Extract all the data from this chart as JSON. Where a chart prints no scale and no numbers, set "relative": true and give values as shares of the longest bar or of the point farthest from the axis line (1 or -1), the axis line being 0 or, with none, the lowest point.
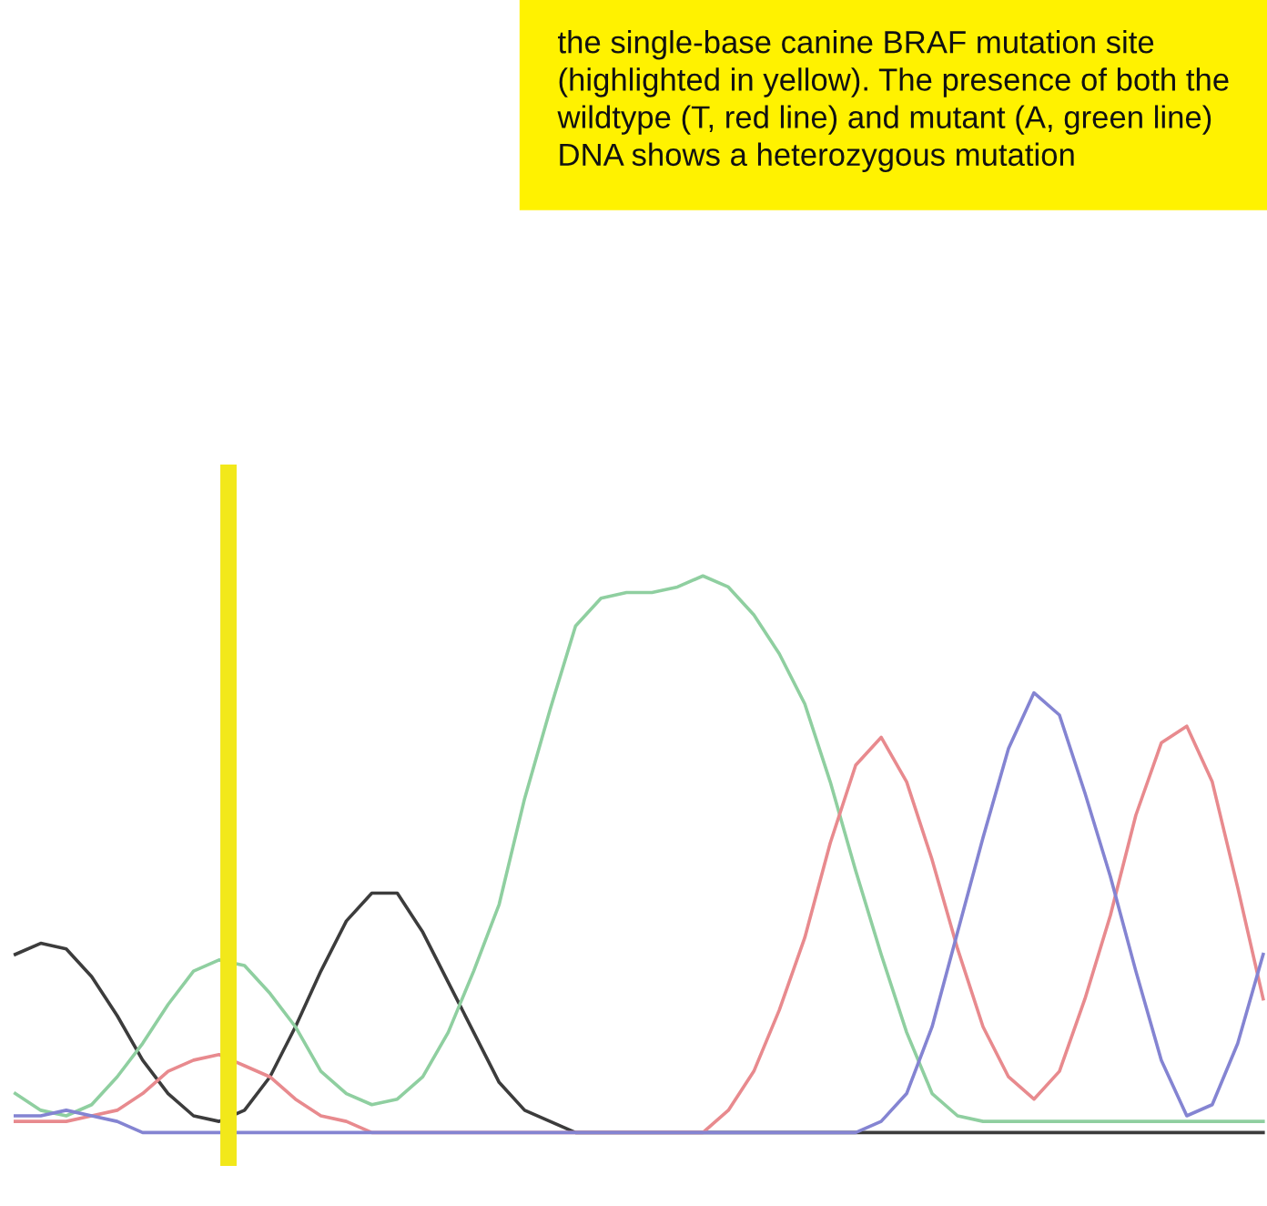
{
  "chart_data": {
    "type": "line",
    "relative": true,
    "annotations": [
      "the single-base canine BRAF mutation site (highlighted in yellow). The presence of both the wildtype (T, red line) and mutant (A, green line) DNA shows a heterozygous mutation"
    ],
    "categories": [
      null,
      null,
      null,
      null,
      null,
      null,
      null,
      null,
      null,
      null,
      null,
      null,
      null,
      null,
      null,
      null,
      null,
      null,
      null,
      null,
      null,
      null,
      null,
      null,
      null,
      null,
      null,
      null,
      null,
      null,
      null,
      null,
      null,
      null,
      null,
      null,
      null,
      null,
      null,
      null,
      null,
      null,
      null,
      null,
      null,
      null,
      null,
      null,
      null,
      null
    ],
    "series": [
      {
        "color": "#3c3c3c",
        "values": [
          0.32,
          0.34,
          0.33,
          0.28,
          0.21,
          0.13,
          0.07,
          0.03,
          0.02,
          0.04,
          0.1,
          0.19,
          0.29,
          0.38,
          0.43,
          0.43,
          0.36,
          0.27,
          0.18,
          0.09,
          0.04,
          0.02,
          0,
          0,
          0,
          0,
          0,
          0,
          0,
          0,
          0,
          0,
          0,
          0,
          0,
          0,
          0,
          0,
          0,
          0,
          0,
          0,
          0,
          0,
          0,
          0,
          0,
          0,
          0,
          0
        ]
      },
      {
        "color": "#8fcfa0",
        "values": [
          0.07,
          0.04,
          0.03,
          0.05,
          0.1,
          0.16,
          0.23,
          0.29,
          0.31,
          0.3,
          0.25,
          0.19,
          0.11,
          0.07,
          0.05,
          0.06,
          0.1,
          0.18,
          0.29,
          0.41,
          0.6,
          0.76,
          0.91,
          0.96,
          0.97,
          0.97,
          0.98,
          1,
          0.98,
          0.93,
          0.86,
          0.77,
          0.63,
          0.47,
          0.32,
          0.18,
          0.07,
          0.03,
          0.02,
          0.02,
          0.02,
          0.02,
          0.02,
          0.02,
          0.02,
          0.02,
          0.02,
          0.02,
          0.02,
          0.02
        ]
      },
      {
        "color": "#e88a8e",
        "values": [
          0.02,
          0.02,
          0.02,
          0.03,
          0.04,
          0.07,
          0.11,
          0.13,
          0.14,
          0.12,
          0.1,
          0.06,
          0.03,
          0.02,
          0,
          0,
          0,
          0,
          0,
          0,
          0,
          0,
          0,
          0,
          0,
          0,
          0,
          0,
          0.04,
          0.11,
          0.22,
          0.35,
          0.52,
          0.66,
          0.71,
          0.63,
          0.49,
          0.33,
          0.19,
          0.1,
          0.06,
          0.11,
          0.24,
          0.39,
          0.57,
          0.7,
          0.73,
          0.63,
          0.44,
          0.24
        ]
      },
      {
        "color": "#8484d2",
        "values": [
          0.03,
          0.03,
          0.04,
          0.03,
          0.02,
          0,
          0,
          0,
          0,
          0,
          0,
          0,
          0,
          0,
          0,
          0,
          0,
          0,
          0,
          0,
          0,
          0,
          0,
          0,
          0,
          0,
          0,
          0,
          0,
          0,
          0,
          0,
          0,
          0,
          0.02,
          0.07,
          0.19,
          0.36,
          0.53,
          0.69,
          0.79,
          0.75,
          0.61,
          0.46,
          0.29,
          0.13,
          0.03,
          0.05,
          0.16,
          0.32
        ]
      }
    ],
    "line_style": "solid"
  }
}
